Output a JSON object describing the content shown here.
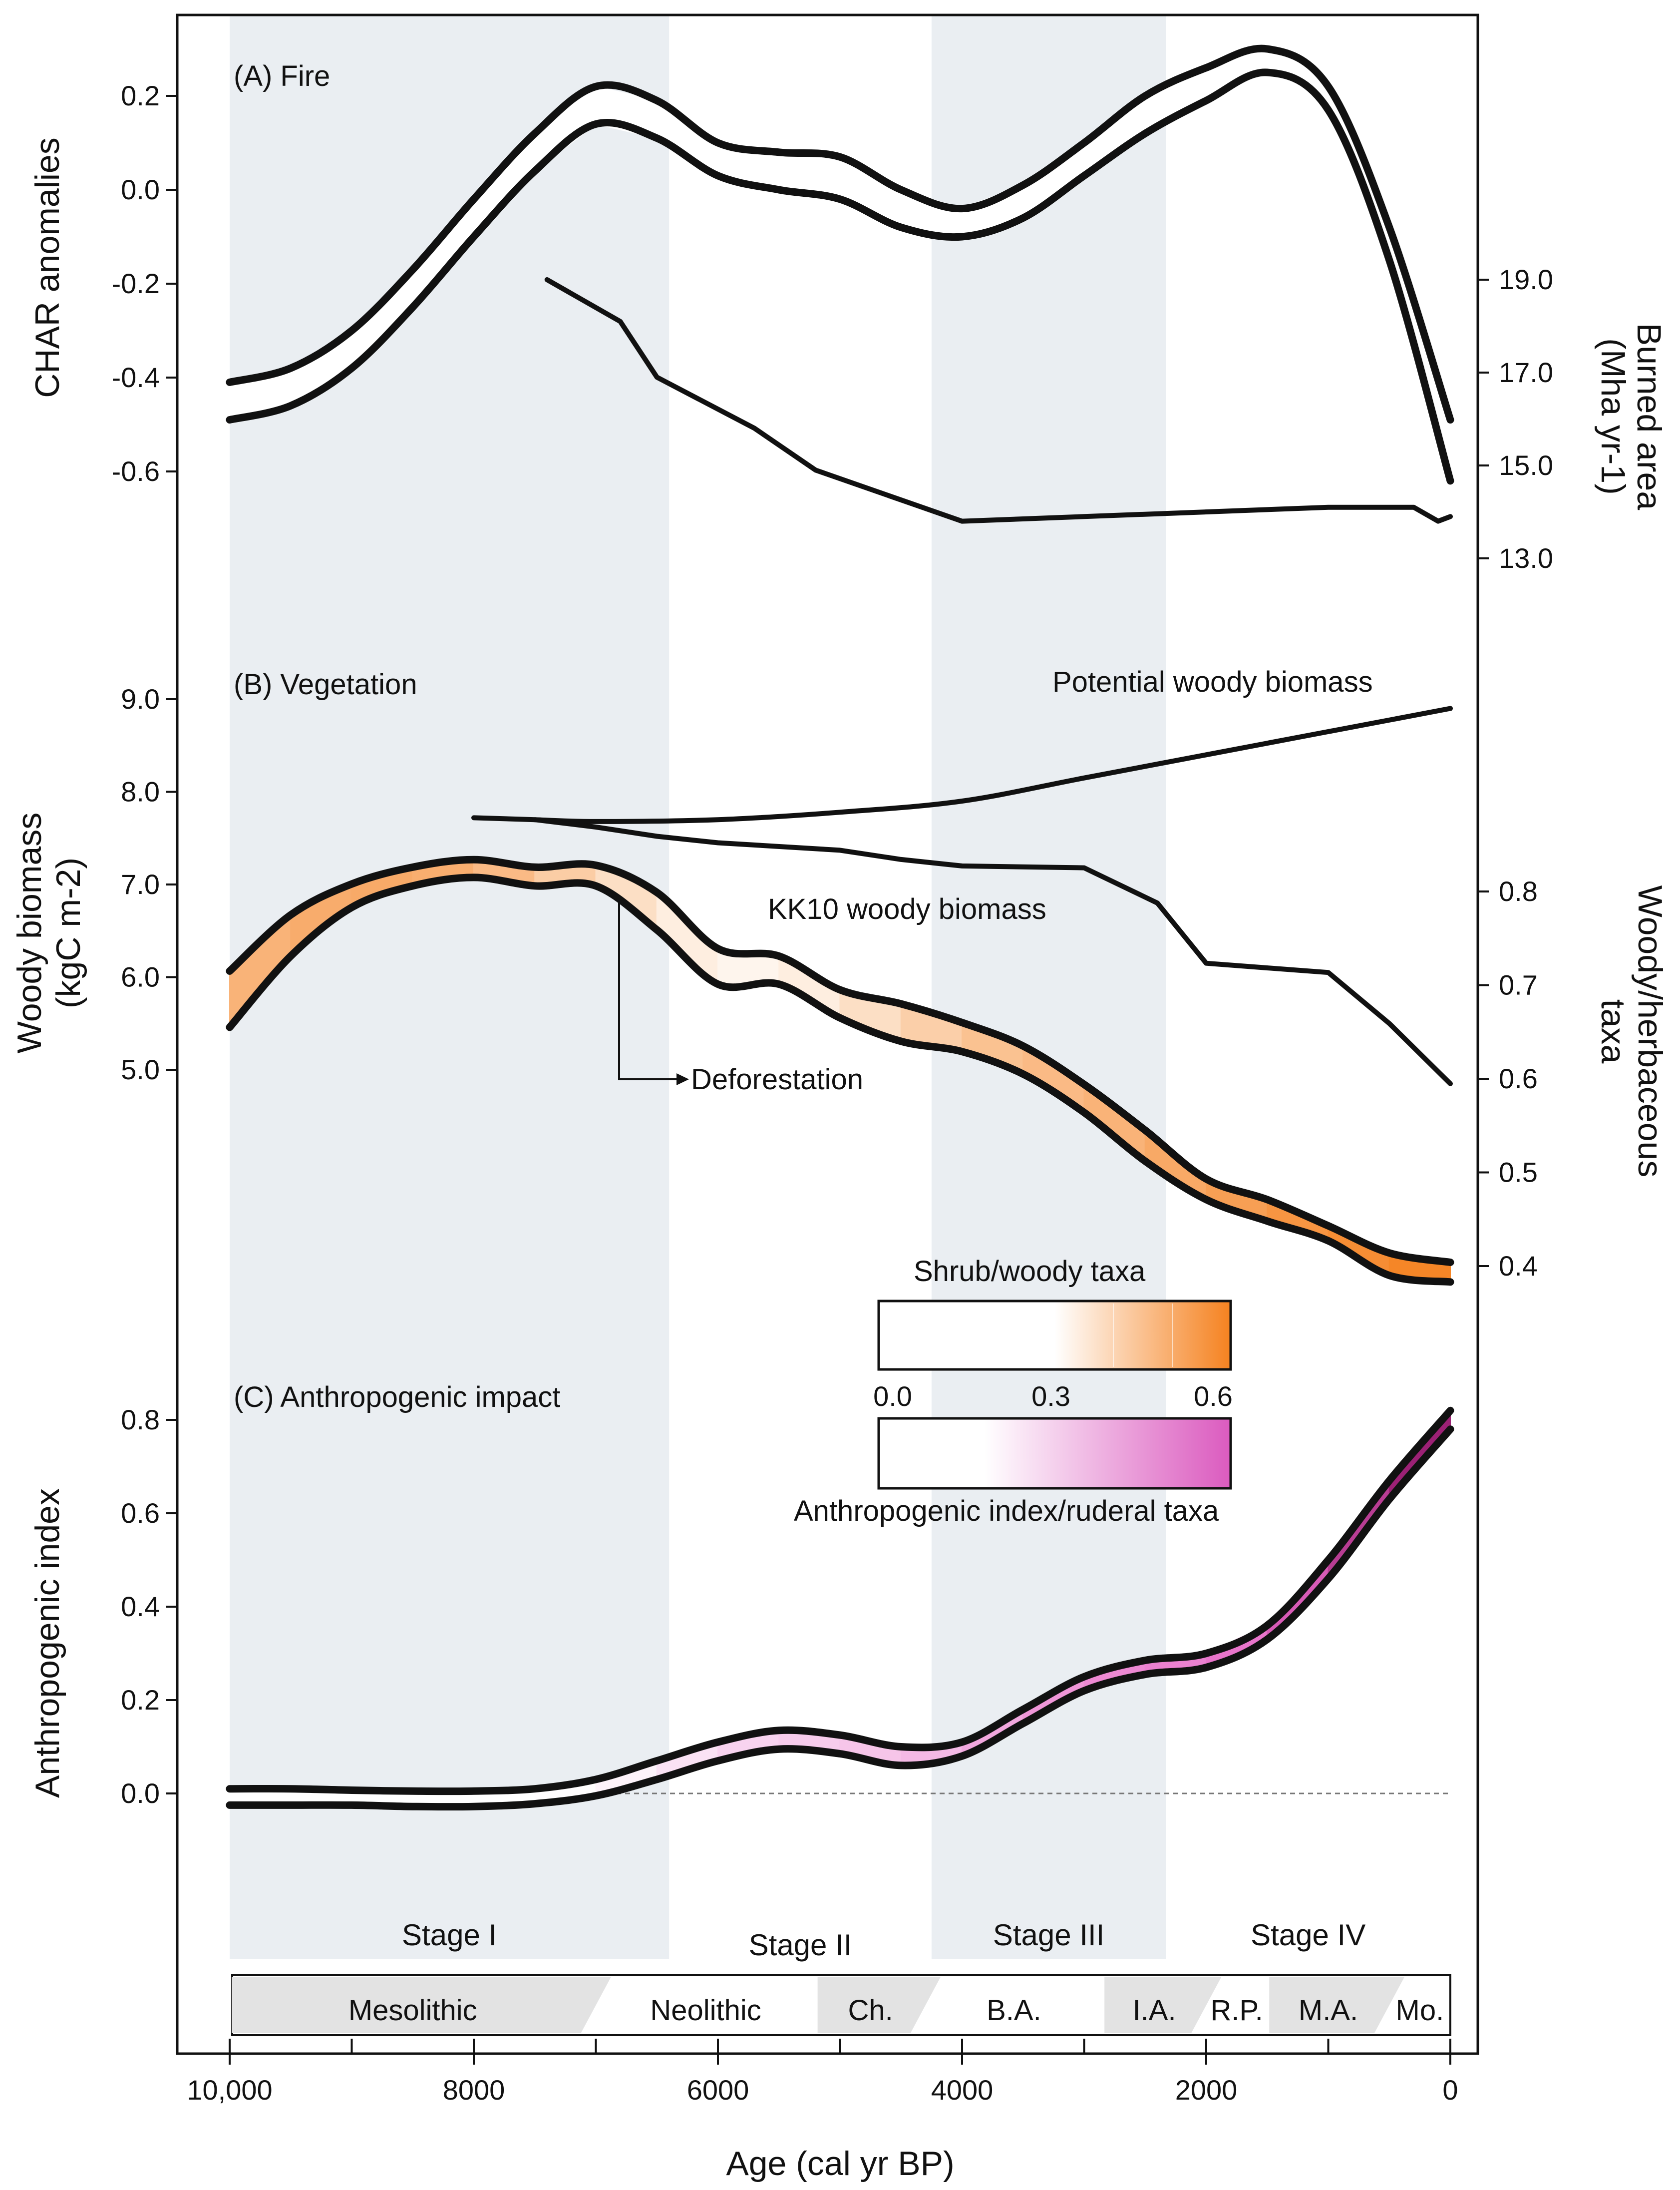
{
  "chart_data": {
    "type": "line",
    "x_axis": {
      "label": "Age (cal yr BP)",
      "range": [
        10000,
        0
      ],
      "ticks": [
        10000,
        8000,
        6000,
        4000,
        2000,
        0
      ],
      "tick_labels": [
        "10,000",
        "8000",
        "6000",
        "4000",
        "2000",
        "0"
      ],
      "minor_ticks": [
        9000,
        7000,
        5000,
        3000,
        1000
      ]
    },
    "stages": [
      {
        "label": "Stage I",
        "from": 10000,
        "to": 6400,
        "shaded": true
      },
      {
        "label": "Stage II",
        "from": 6400,
        "to": 4250,
        "shaded": false
      },
      {
        "label": "Stage III",
        "from": 4250,
        "to": 2330,
        "shaded": true
      },
      {
        "label": "Stage IV",
        "from": 2330,
        "to": 0,
        "shaded": false
      }
    ],
    "periods": [
      {
        "label": "Mesolithic",
        "from": 10000,
        "to": 7000
      },
      {
        "label": "Neolithic",
        "from": 7000,
        "to": 5200
      },
      {
        "label": "Ch.",
        "from": 5200,
        "to": 4300
      },
      {
        "label": "B.A.",
        "from": 4300,
        "to": 2850
      },
      {
        "label": "I.A.",
        "from": 2850,
        "to": 2000
      },
      {
        "label": "R.P.",
        "from": 2000,
        "to": 1500
      },
      {
        "label": "M.A.",
        "from": 1500,
        "to": 500
      },
      {
        "label": "Mo.",
        "from": 500,
        "to": 0
      }
    ],
    "panels": [
      {
        "id": "fire",
        "label": "(A) Fire",
        "left_axis": {
          "label": "CHAR anomalies",
          "ticks": [
            -0.6,
            -0.4,
            -0.2,
            0.0,
            0.2
          ],
          "tick_labels": [
            "-0.6",
            "-0.4",
            "-0.2",
            "0.0",
            "0.2"
          ]
        },
        "right_axis": {
          "label_line1": "Burned area",
          "label_line2": "(Mha yr-1)",
          "ticks": [
            13.0,
            15.0,
            17.0,
            19.0
          ],
          "tick_labels": [
            "13.0",
            "15.0",
            "17.0",
            "19.0"
          ]
        },
        "series": [
          {
            "name": "CHAR anomalies",
            "axis": "left",
            "style": "band",
            "x": [
              10000,
              9500,
              9000,
              8500,
              8000,
              7500,
              7000,
              6500,
              6000,
              5500,
              5000,
              4500,
              4000,
              3500,
              3000,
              2500,
              2000,
              1500,
              1000,
              500,
              0
            ],
            "upper": [
              -0.41,
              -0.38,
              -0.3,
              -0.17,
              -0.02,
              0.12,
              0.22,
              0.19,
              0.1,
              0.08,
              0.07,
              0.0,
              -0.04,
              0.01,
              0.1,
              0.2,
              0.26,
              0.3,
              0.22,
              -0.08,
              -0.49
            ],
            "lower": [
              -0.49,
              -0.46,
              -0.38,
              -0.25,
              -0.1,
              0.04,
              0.14,
              0.11,
              0.03,
              0.0,
              -0.02,
              -0.08,
              -0.1,
              -0.06,
              0.03,
              0.12,
              0.19,
              0.25,
              0.17,
              -0.15,
              -0.62
            ]
          },
          {
            "name": "Burned area",
            "axis": "right",
            "style": "line",
            "x": [
              7400,
              6800,
              6500,
              5700,
              5200,
              4000,
              3000,
              2000,
              1000,
              300,
              100,
              0
            ],
            "y": [
              19.0,
              18.1,
              16.9,
              15.8,
              14.9,
              13.8,
              13.9,
              14.0,
              14.1,
              14.1,
              13.8,
              13.9
            ]
          }
        ]
      },
      {
        "id": "vegetation",
        "label": "(B) Vegetation",
        "left_axis": {
          "label_line1": "Woody biomass",
          "label_line2": "(kgC m-2)",
          "ticks": [
            5.0,
            6.0,
            7.0,
            8.0,
            9.0
          ],
          "tick_labels": [
            "5.0",
            "6.0",
            "7.0",
            "8.0",
            "9.0"
          ]
        },
        "right_axis": {
          "label_line1": "Woody/herbaceous",
          "label_line2": "taxa",
          "ticks": [
            0.4,
            0.5,
            0.6,
            0.7,
            0.8
          ],
          "tick_labels": [
            "0.4",
            "0.5",
            "0.6",
            "0.7",
            "0.8"
          ]
        },
        "series": [
          {
            "name": "Potential woody biomass",
            "axis": "left",
            "style": "line",
            "x": [
              7500,
              7000,
              6000,
              5000,
              4000,
              3000,
              2000,
              1000,
              0
            ],
            "y": [
              7.7,
              7.68,
              7.7,
              7.78,
              7.9,
              8.15,
              8.4,
              8.65,
              8.9
            ]
          },
          {
            "name": "KK10 woody biomass",
            "axis": "left",
            "style": "line",
            "x": [
              8000,
              7500,
              7000,
              6500,
              6000,
              5000,
              4500,
              4000,
              3000,
              2400,
              2000,
              1500,
              1000,
              500,
              0
            ],
            "y": [
              7.72,
              7.7,
              7.62,
              7.52,
              7.45,
              7.37,
              7.27,
              7.2,
              7.18,
              6.8,
              6.15,
              6.1,
              6.05,
              5.5,
              4.85
            ]
          },
          {
            "name": "Woody/herbaceous taxa",
            "axis": "right",
            "style": "band",
            "x": [
              10000,
              9500,
              9000,
              8500,
              8000,
              7500,
              7000,
              6500,
              6000,
              5500,
              5000,
              4500,
              4000,
              3500,
              3000,
              2500,
              2000,
              1500,
              1000,
              500,
              0
            ],
            "upper": [
              0.715,
              0.775,
              0.808,
              0.826,
              0.834,
              0.826,
              0.828,
              0.799,
              0.739,
              0.731,
              0.695,
              0.68,
              0.66,
              0.635,
              0.594,
              0.545,
              0.493,
              0.471,
              0.443,
              0.414,
              0.404
            ],
            "lower": [
              0.655,
              0.731,
              0.783,
              0.806,
              0.815,
              0.806,
              0.806,
              0.759,
              0.701,
              0.701,
              0.665,
              0.64,
              0.629,
              0.605,
              0.564,
              0.512,
              0.471,
              0.448,
              0.427,
              0.39,
              0.383
            ],
            "fill": [
              0.35,
              0.4,
              0.42,
              0.42,
              0.38,
              0.3,
              0.2,
              0.12,
              0.05,
              0.05,
              0.12,
              0.2,
              0.28,
              0.33,
              0.35,
              0.4,
              0.45,
              0.5,
              0.55,
              0.58,
              0.62
            ]
          }
        ],
        "annotations": [
          {
            "text": "Potential woody biomass"
          },
          {
            "text": "KK10 woody biomass"
          },
          {
            "text": "Deforestation"
          }
        ]
      },
      {
        "id": "anthropogenic",
        "label": "(C) Anthropogenic impact",
        "left_axis": {
          "label": "Anthropogenic index",
          "ticks": [
            0.0,
            0.2,
            0.4,
            0.6,
            0.8
          ],
          "tick_labels": [
            "0.0",
            "0.2",
            "0.4",
            "0.6",
            "0.8"
          ]
        },
        "series": [
          {
            "name": "Anthropogenic index",
            "axis": "left",
            "style": "band",
            "x": [
              10000,
              9500,
              9000,
              8500,
              8000,
              7500,
              7000,
              6500,
              6000,
              5500,
              5000,
              4500,
              4000,
              3500,
              3000,
              2500,
              2000,
              1500,
              1000,
              500,
              0
            ],
            "upper": [
              0.01,
              0.01,
              0.007,
              0.005,
              0.005,
              0.01,
              0.03,
              0.07,
              0.11,
              0.135,
              0.125,
              0.1,
              0.11,
              0.18,
              0.25,
              0.285,
              0.3,
              0.36,
              0.5,
              0.67,
              0.82
            ],
            "lower": [
              -0.025,
              -0.025,
              -0.025,
              -0.028,
              -0.028,
              -0.022,
              -0.005,
              0.03,
              0.07,
              0.095,
              0.085,
              0.06,
              0.08,
              0.15,
              0.22,
              0.255,
              0.27,
              0.33,
              0.46,
              0.63,
              0.78
            ],
            "fill": [
              0.0,
              0.0,
              0.0,
              0.0,
              0.0,
              0.0,
              0.02,
              0.08,
              0.16,
              0.2,
              0.22,
              0.25,
              0.32,
              0.4,
              0.46,
              0.5,
              0.53,
              0.6,
              0.75,
              0.88,
              1.0
            ]
          }
        ],
        "reference_line": 0.0
      }
    ],
    "colorbars": [
      {
        "title": "Shrub/woody taxa",
        "ticks": [
          0.0,
          0.3,
          0.6
        ],
        "tick_labels": [
          "0.0",
          "0.3",
          "0.6"
        ],
        "color_end": "#f58220"
      },
      {
        "title": "Anthropogenic index/ruderal taxa",
        "color_end": "#db5bbf"
      }
    ]
  },
  "colors": {
    "stage_shade": "#eaeef2",
    "period_shade": "#e3e3e3",
    "orange": "#f58220",
    "magenta": "#8e1466",
    "pink": "#e86cc8",
    "line": "#111111"
  }
}
